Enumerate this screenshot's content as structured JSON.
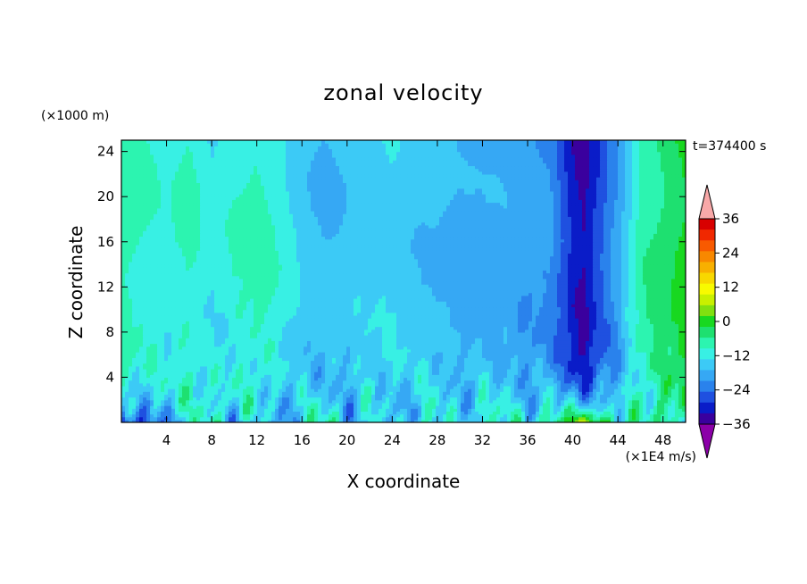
{
  "chart_data": {
    "type": "heatmap",
    "title": "zonal velocity",
    "time_label": "t=374400 s",
    "xlabel": "X coordinate",
    "ylabel": "Z coordinate",
    "x_unit": "(×1E4 m/s)",
    "y_unit": "(×1000 m)",
    "xlim": [
      0,
      50
    ],
    "ylim": [
      0,
      25
    ],
    "x_ticks": [
      4,
      8,
      12,
      16,
      20,
      24,
      28,
      32,
      36,
      40,
      44,
      48
    ],
    "y_ticks": [
      4,
      8,
      12,
      16,
      20,
      24
    ],
    "colorbar": {
      "min": -42,
      "max": 42,
      "step": 6,
      "tick_labels": [
        "36",
        "24",
        "12",
        "0",
        "−12",
        "−24",
        "−36"
      ],
      "tick_values": [
        36,
        24,
        12,
        0,
        -12,
        -24,
        -36
      ],
      "colors": [
        "#8b00a8",
        "#3a009e",
        "#0a1cc8",
        "#1f50e0",
        "#2a82ec",
        "#36a8f4",
        "#3ccaf6",
        "#38f0e4",
        "#2cf4b0",
        "#1ee070",
        "#18d820",
        "#80e010",
        "#c8f000",
        "#f8fa00",
        "#f8d800",
        "#f8b000",
        "#f88800",
        "#f85a00",
        "#f02800",
        "#d80000",
        "#f8a8a8"
      ]
    },
    "columns_x": [
      0,
      2,
      4,
      6,
      8,
      10,
      12,
      14,
      16,
      18,
      20,
      22,
      24,
      26,
      28,
      30,
      32,
      34,
      36,
      38,
      40,
      41,
      42,
      44,
      46,
      48,
      50
    ],
    "base_profile_u": [
      10,
      6,
      3,
      7,
      1,
      5,
      8,
      4,
      -3,
      -6,
      -4,
      -3,
      -1,
      -4,
      -5,
      -8,
      -8,
      -8,
      -10,
      -12,
      -28,
      -32,
      -24,
      -10,
      9,
      14,
      20
    ],
    "near_surface_u": [
      -32,
      -22,
      -12,
      -4,
      6,
      -8,
      -2,
      -14,
      4,
      12,
      -6,
      8,
      -10,
      3,
      6,
      -8,
      10,
      4,
      -6,
      14,
      20,
      28,
      26,
      8,
      4,
      14,
      10
    ]
  }
}
